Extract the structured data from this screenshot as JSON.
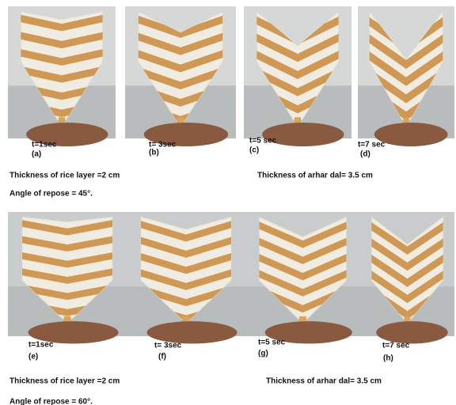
{
  "figures": [
    {
      "panels": [
        {
          "time": "t=1sec",
          "label": "(a)"
        },
        {
          "time": "t= 3sec",
          "label": "(b)"
        },
        {
          "time": "t=5 sec",
          "label": "(c)"
        },
        {
          "time": "t=7 sec",
          "label": "(d)"
        }
      ],
      "rice": "Thickness of rice  layer =2 cm",
      "dal": "Thickness of arhar dal= 3.5 cm",
      "angle": "Angle of repose = 45°."
    },
    {
      "panels": [
        {
          "time": "t=1sec",
          "label": "(e)"
        },
        {
          "time": "t= 3sec",
          "label": "(f)"
        },
        {
          "time": "t=5 sec",
          "label": "(g)"
        },
        {
          "time": "t=7 sec",
          "label": "(h)"
        }
      ],
      "rice": "Thickness of rice  layer =2 cm",
      "dal": "Thickness of arhar dal= 3.5 cm",
      "angle": "Angle of repose = 60°."
    }
  ]
}
